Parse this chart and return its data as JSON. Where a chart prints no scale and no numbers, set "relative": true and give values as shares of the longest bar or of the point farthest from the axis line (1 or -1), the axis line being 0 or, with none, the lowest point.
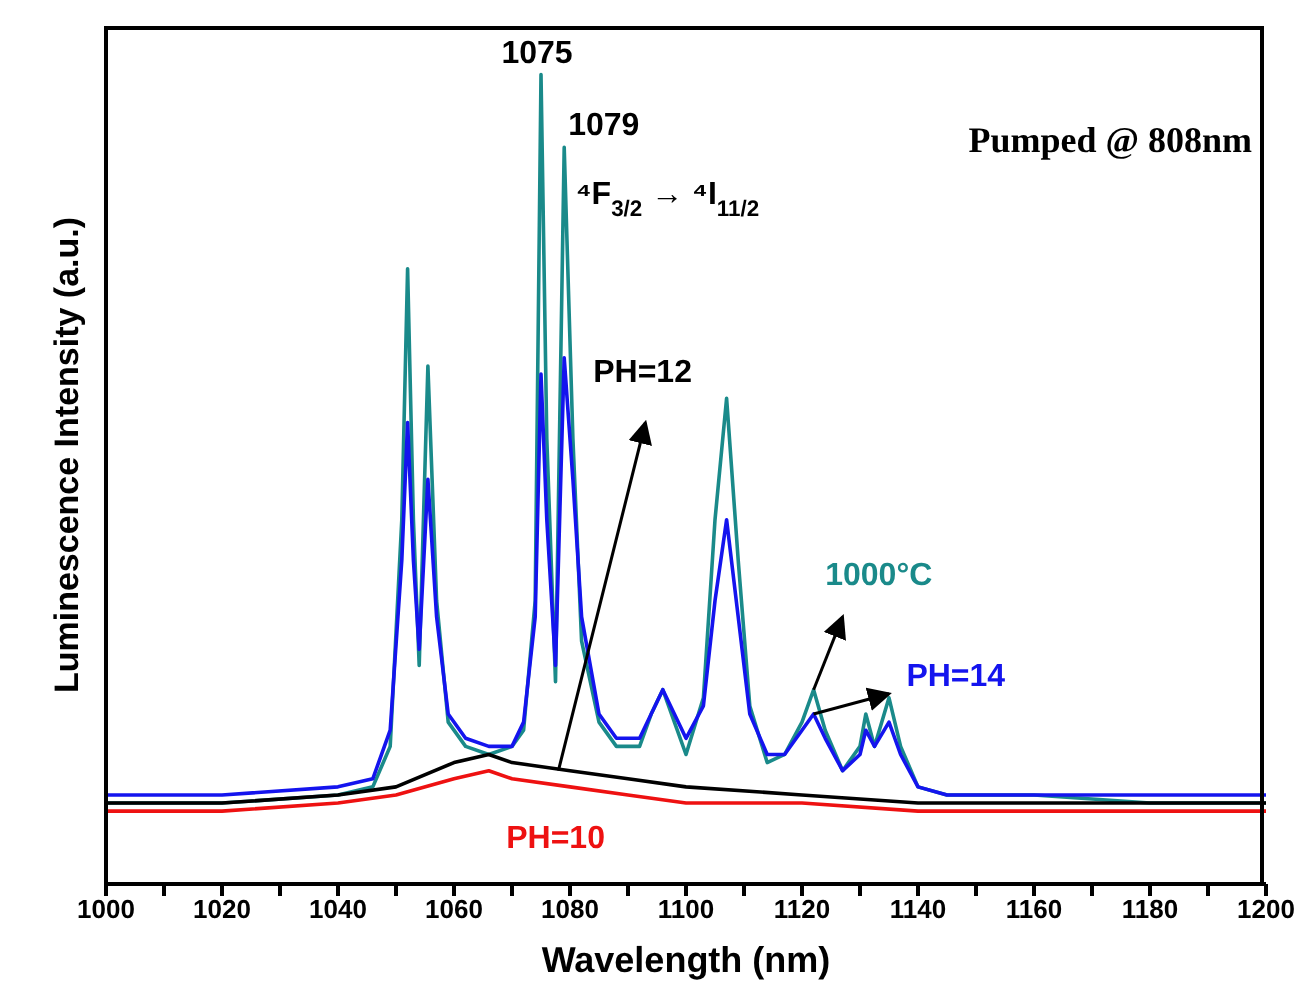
{
  "chart_data": {
    "type": "line",
    "relative": true,
    "xlabel": "Wavelength (nm)",
    "ylabel": "Luminescence Intensity (a.u.)",
    "xlim": [
      1000,
      1200
    ],
    "xticks": [
      1000,
      {
        "value": 1010,
        "label": null
      },
      1020,
      {
        "value": 1030,
        "label": null
      },
      1040,
      {
        "value": 1050,
        "label": null
      },
      1060,
      {
        "value": 1070,
        "label": null
      },
      1080,
      {
        "value": 1090,
        "label": null
      },
      1100,
      {
        "value": 1110,
        "label": null
      },
      1120,
      {
        "value": 1130,
        "label": null
      },
      1140,
      {
        "value": 1150,
        "label": null
      },
      1160,
      {
        "value": 1170,
        "label": null
      },
      1180,
      {
        "value": 1190,
        "label": null
      },
      1200
    ],
    "marker": "none",
    "line_style": "solid",
    "annotations": [
      {
        "text": "1075",
        "x": 1075,
        "y": 1.0
      },
      {
        "text": "1079",
        "x": 1079,
        "y": 0.91
      },
      "Pumped @ 808nm",
      "⁴F$_{3/2}$ → ⁴I$_{11/2}$"
    ],
    "series": [
      {
        "name": "1000°C",
        "color": "#1a8a8a",
        "x": [
          1000,
          1020,
          1040,
          1046,
          1049,
          1051,
          1052,
          1053,
          1054,
          1055.5,
          1057,
          1059,
          1062,
          1066,
          1070,
          1072,
          1074,
          1075,
          1076,
          1077.5,
          1079,
          1080.5,
          1082,
          1085,
          1088,
          1092,
          1094,
          1096,
          1098,
          1100,
          1103,
          1105,
          1107,
          1109,
          1111,
          1114,
          1117,
          1120,
          1122,
          1124,
          1127,
          1130,
          1131,
          1132.5,
          1135,
          1137,
          1140,
          1145,
          1160,
          1180,
          1200
        ],
        "values": [
          0.1,
          0.1,
          0.11,
          0.12,
          0.17,
          0.45,
          0.76,
          0.45,
          0.27,
          0.64,
          0.35,
          0.2,
          0.17,
          0.16,
          0.17,
          0.19,
          0.35,
          1.0,
          0.55,
          0.25,
          0.91,
          0.55,
          0.3,
          0.2,
          0.17,
          0.17,
          0.21,
          0.24,
          0.2,
          0.16,
          0.23,
          0.45,
          0.6,
          0.4,
          0.22,
          0.15,
          0.16,
          0.2,
          0.24,
          0.19,
          0.14,
          0.17,
          0.21,
          0.17,
          0.23,
          0.17,
          0.12,
          0.11,
          0.11,
          0.1,
          0.1
        ]
      },
      {
        "name": "PH=14",
        "color": "#1414ee",
        "x": [
          1000,
          1020,
          1040,
          1046,
          1049,
          1051,
          1052,
          1053,
          1054,
          1055.5,
          1057,
          1059,
          1062,
          1066,
          1070,
          1072,
          1074,
          1075,
          1076,
          1077.5,
          1079,
          1080.5,
          1082,
          1085,
          1088,
          1092,
          1094,
          1096,
          1098,
          1100,
          1103,
          1105,
          1107,
          1109,
          1111,
          1114,
          1117,
          1120,
          1122,
          1124,
          1127,
          1130,
          1131,
          1132.5,
          1135,
          1137,
          1140,
          1145,
          1160,
          1180,
          1200
        ],
        "values": [
          0.11,
          0.11,
          0.12,
          0.13,
          0.19,
          0.4,
          0.57,
          0.4,
          0.29,
          0.5,
          0.33,
          0.21,
          0.18,
          0.17,
          0.17,
          0.2,
          0.33,
          0.63,
          0.45,
          0.27,
          0.65,
          0.5,
          0.33,
          0.21,
          0.18,
          0.18,
          0.21,
          0.24,
          0.21,
          0.18,
          0.22,
          0.35,
          0.45,
          0.33,
          0.21,
          0.16,
          0.16,
          0.19,
          0.21,
          0.18,
          0.14,
          0.16,
          0.19,
          0.17,
          0.2,
          0.16,
          0.12,
          0.11,
          0.11,
          0.11,
          0.11
        ]
      },
      {
        "name": "PH=12",
        "color": "#000000",
        "x": [
          1000,
          1020,
          1040,
          1050,
          1060,
          1066,
          1070,
          1080,
          1090,
          1100,
          1120,
          1140,
          1160,
          1200
        ],
        "values": [
          0.1,
          0.1,
          0.11,
          0.12,
          0.15,
          0.16,
          0.15,
          0.14,
          0.13,
          0.12,
          0.11,
          0.1,
          0.1,
          0.1
        ]
      },
      {
        "name": "PH=10",
        "color": "#ee1111",
        "x": [
          1000,
          1020,
          1040,
          1050,
          1060,
          1066,
          1070,
          1080,
          1090,
          1100,
          1120,
          1140,
          1200
        ],
        "values": [
          0.09,
          0.09,
          0.1,
          0.11,
          0.13,
          0.14,
          0.13,
          0.12,
          0.11,
          0.1,
          0.1,
          0.09,
          0.09
        ]
      }
    ]
  }
}
